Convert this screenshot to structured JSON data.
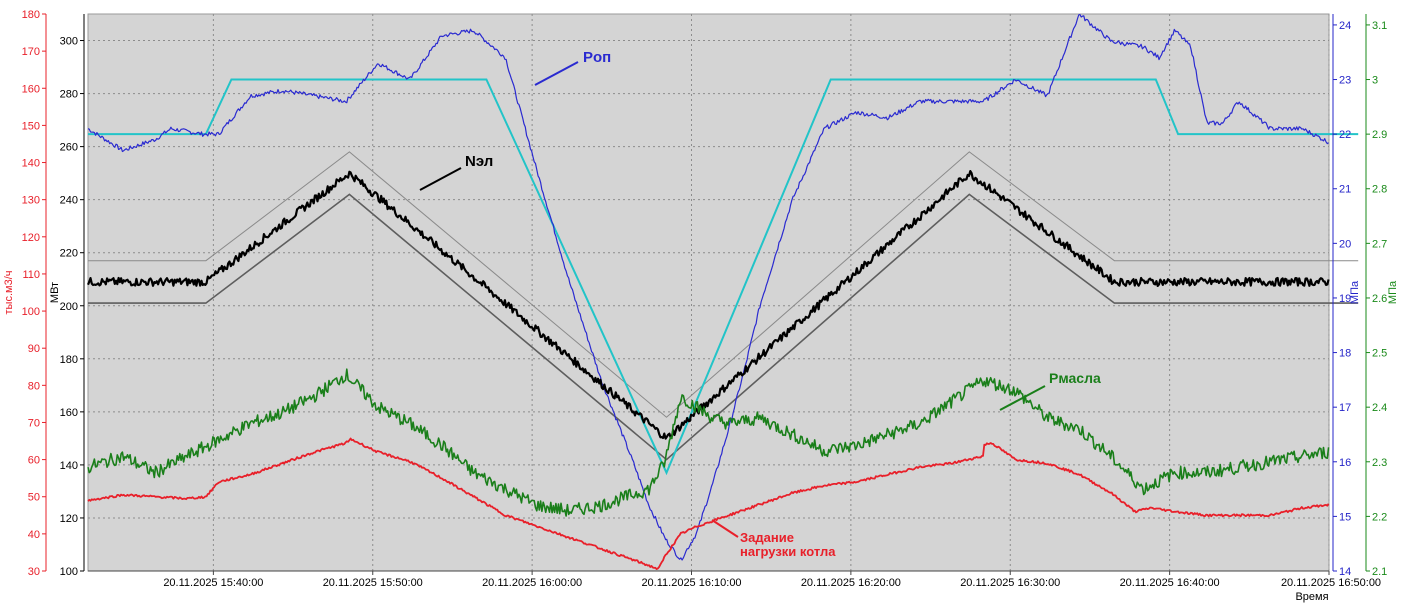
{
  "chart_data": {
    "type": "line",
    "background": "#d4d4d4",
    "grid": true,
    "x_axis": {
      "label": "Время",
      "range": [
        "20.11.2025 15:32:00",
        "20.11.2025 16:50:00"
      ],
      "tick_labels": [
        "20.11.2025 15:40:00",
        "20.11.2025 15:50:00",
        "20.11.2025 16:00:00",
        "20.11.2025 16:10:00",
        "20.11.2025 16:20:00",
        "20.11.2025 16:30:00",
        "20.11.2025 16:40:00",
        "20.11.2025 16:50:00"
      ],
      "tick_minutes": [
        15.6667,
        25.6667,
        35.6667,
        45.6667,
        55.6667,
        65.6667,
        75.6667,
        85.6667
      ]
    },
    "y_axes": {
      "flow": {
        "label": "тыс.м3/ч",
        "range": [
          30,
          180
        ],
        "ticks": [
          30,
          40,
          50,
          60,
          70,
          80,
          90,
          100,
          110,
          120,
          130,
          140,
          150,
          160,
          170,
          180
        ],
        "color": "#e8202a"
      },
      "power": {
        "label": "МВт",
        "range": [
          100,
          310
        ],
        "ticks": [
          100,
          120,
          140,
          160,
          180,
          200,
          220,
          240,
          260,
          280,
          300
        ],
        "color": "#000000"
      },
      "steam_pressure": {
        "label": "МПа",
        "range": [
          14,
          24.2
        ],
        "ticks": [
          14,
          15,
          16,
          17,
          18,
          19,
          20,
          21,
          22,
          23,
          24
        ],
        "color": "#2424c8"
      },
      "oil_pressure": {
        "label": "МПа",
        "range": [
          2.1,
          3.12
        ],
        "ticks": [
          2.1,
          2.2,
          2.3,
          2.4,
          2.5,
          2.6,
          2.7,
          2.8,
          2.9,
          3,
          3.1
        ],
        "color": "#1a8a1a"
      }
    },
    "series": [
      {
        "name": "Pоп",
        "axis": "steam_pressure",
        "color": "#2a2ad0",
        "x_min": [
          7.8,
          10,
          12,
          13,
          15,
          16,
          18,
          20,
          22,
          24,
          26,
          28,
          30,
          32,
          34,
          36,
          38,
          40,
          42,
          43,
          44,
          45,
          46,
          47,
          48,
          49,
          50,
          52,
          54,
          56,
          58,
          60,
          62,
          64,
          66,
          68,
          70,
          72,
          74,
          75,
          76,
          77,
          78,
          79,
          80,
          82,
          84,
          86,
          87.5
        ],
        "y": [
          22.1,
          21.7,
          21.9,
          22.1,
          22.0,
          22.0,
          22.7,
          22.8,
          22.7,
          22.6,
          23.3,
          23.0,
          23.8,
          23.9,
          23.4,
          21.3,
          19.3,
          17.5,
          16.0,
          15.2,
          14.6,
          14.2,
          14.7,
          15.6,
          16.6,
          17.7,
          18.9,
          20.8,
          22.1,
          22.4,
          22.3,
          22.6,
          22.6,
          22.6,
          23.0,
          22.7,
          24.2,
          23.7,
          23.6,
          23.4,
          23.9,
          23.6,
          22.2,
          22.2,
          22.6,
          22.1,
          22.1,
          21.8,
          21.6
        ]
      },
      {
        "name": "Nэл",
        "axis": "power",
        "color": "#000000",
        "x_min": [
          7.8,
          15.2,
          24.2,
          44.1,
          63.1,
          72.2,
          87.5
        ],
        "y": [
          209,
          209,
          250,
          150,
          250,
          209,
          209
        ]
      },
      {
        "name": "Рмасла",
        "axis": "oil_pressure",
        "color": "#1a7f1a",
        "x_min": [
          7.8,
          10,
          12,
          14,
          16,
          18,
          20,
          22,
          24,
          25,
          26,
          28,
          30,
          32,
          34,
          36,
          38,
          40,
          42,
          43,
          44,
          45,
          46,
          47,
          48,
          50,
          52,
          54,
          56,
          58,
          60,
          62,
          64,
          66,
          68,
          70,
          72,
          74,
          76,
          78,
          80,
          82,
          84,
          86,
          87.5
        ],
        "y": [
          2.29,
          2.31,
          2.28,
          2.31,
          2.34,
          2.37,
          2.39,
          2.42,
          2.46,
          2.43,
          2.4,
          2.37,
          2.33,
          2.28,
          2.25,
          2.22,
          2.21,
          2.22,
          2.24,
          2.25,
          2.3,
          2.42,
          2.4,
          2.38,
          2.37,
          2.38,
          2.35,
          2.32,
          2.33,
          2.35,
          2.37,
          2.41,
          2.45,
          2.43,
          2.38,
          2.36,
          2.31,
          2.25,
          2.28,
          2.28,
          2.29,
          2.3,
          2.31,
          2.32,
          2.32
        ]
      },
      {
        "name": "Задание нагрузки котла",
        "axis": "flow",
        "color": "#e8202a",
        "x_min": [
          7.8,
          10,
          12,
          14,
          15.2,
          16,
          18,
          20,
          22,
          24,
          24.3,
          26,
          28,
          30,
          32,
          34,
          36,
          38,
          40,
          42,
          43.6,
          44,
          45,
          46,
          48,
          50,
          52,
          54,
          56,
          58,
          60,
          62,
          64,
          63.1,
          64.5,
          66,
          68,
          70,
          72,
          73.5,
          74.5,
          76,
          78,
          80,
          82,
          84,
          86,
          87.5
        ],
        "y": [
          49,
          50.5,
          50,
          49.5,
          50,
          54,
          56,
          59,
          62,
          64.5,
          65.5,
          62,
          59.5,
          55,
          50,
          45,
          42,
          39,
          36,
          33,
          30.5,
          34,
          40,
          42,
          45,
          48,
          51,
          53,
          54,
          56,
          58,
          59,
          61,
          63,
          64.5,
          60,
          59,
          56,
          51,
          46,
          47,
          46,
          45,
          45,
          45,
          47,
          48,
          49
        ]
      }
    ],
    "annotations": [
      {
        "text": "Pоп",
        "color": "#2a2ad0"
      },
      {
        "text": "Nэл",
        "color": "#000000"
      },
      {
        "text": "Рмасла",
        "color": "#1a7f1a"
      },
      {
        "text": "Задание",
        "color": "#e8202a"
      },
      {
        "text": "нагрузки котла",
        "color": "#e8202a"
      }
    ]
  }
}
